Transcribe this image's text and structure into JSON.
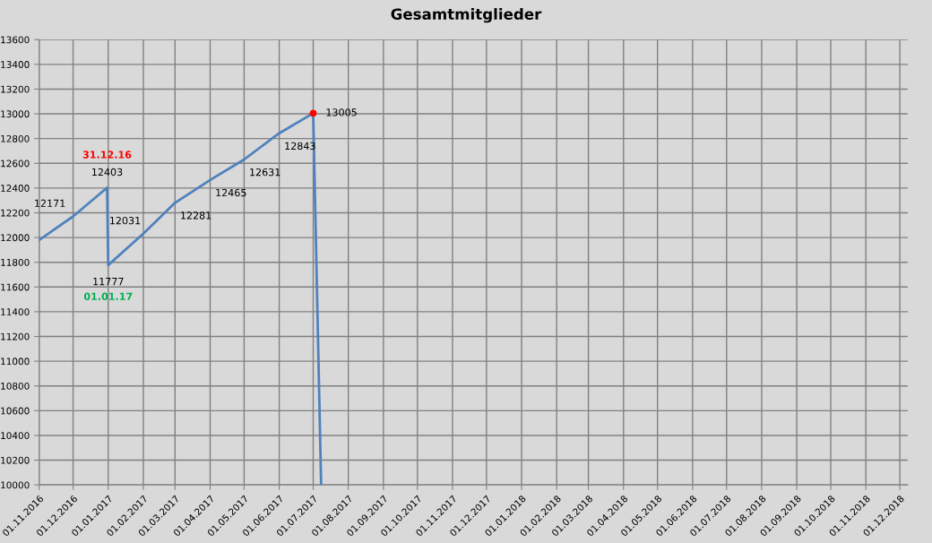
{
  "chart_data": {
    "type": "line",
    "title": "Gesamtmitglieder",
    "series": [
      {
        "color": "#4f81bd",
        "x": [
          "2016-11-01",
          "2016-12-01",
          "2016-12-31",
          "2017-01-01",
          "2017-02-01",
          "2017-03-01",
          "2017-04-01",
          "2017-05-01",
          "2017-06-01",
          "2017-07-01",
          "2017-07-08"
        ],
        "values": [
          11980,
          12171,
          12403,
          11777,
          12031,
          12281,
          12465,
          12631,
          12843,
          13005,
          10000
        ],
        "value_labels": [
          null,
          "12171",
          "12403",
          "11777",
          "12031",
          "12281",
          "12465",
          "12631",
          "12843",
          "13005",
          null
        ]
      },
      {
        "type": "scatter",
        "color": "#ff0000",
        "x": [
          "2017-07-01"
        ],
        "values": [
          13005
        ]
      }
    ],
    "annotations": [
      {
        "text": "31.12.16",
        "x": "2016-12-31",
        "y": 12403
      },
      {
        "text": "01.01.17",
        "x": "2017-01-01",
        "y": 11777
      }
    ],
    "ylim": [
      10000,
      13600
    ],
    "yticks": [
      10000,
      10200,
      10400,
      10600,
      10800,
      11000,
      11200,
      11400,
      11600,
      11800,
      12000,
      12200,
      12400,
      12600,
      12800,
      13000,
      13200,
      13400,
      13600
    ],
    "xlim": [
      "2016-11-01",
      "2018-12-08"
    ],
    "xticks": [
      {
        "value": "2016-11-01",
        "label": "01.11.2016"
      },
      {
        "value": "2016-12-01",
        "label": "01.12.2016"
      },
      {
        "value": "2017-01-01",
        "label": "01.01.2017"
      },
      {
        "value": "2017-02-01",
        "label": "01.02.2017"
      },
      {
        "value": "2017-03-01",
        "label": "01.03.2017"
      },
      {
        "value": "2017-04-01",
        "label": "01.04.2017"
      },
      {
        "value": "2017-05-01",
        "label": "01.05.2017"
      },
      {
        "value": "2017-06-01",
        "label": "01.06.2017"
      },
      {
        "value": "2017-07-01",
        "label": "01.07.2017"
      },
      {
        "value": "2017-08-01",
        "label": "01.08.2017"
      },
      {
        "value": "2017-09-01",
        "label": "01.09.2017"
      },
      {
        "value": "2017-10-01",
        "label": "01.10.2017"
      },
      {
        "value": "2017-11-01",
        "label": "01.11.2017"
      },
      {
        "value": "2017-12-01",
        "label": "01.12.2017"
      },
      {
        "value": "2018-01-01",
        "label": "01.01.2018"
      },
      {
        "value": "2018-02-01",
        "label": "01.02.2018"
      },
      {
        "value": "2018-03-01",
        "label": "01.03.2018"
      },
      {
        "value": "2018-04-01",
        "label": "01.04.2018"
      },
      {
        "value": "2018-05-01",
        "label": "01.05.2018"
      },
      {
        "value": "2018-06-01",
        "label": "01.06.2018"
      },
      {
        "value": "2018-07-01",
        "label": "01.07.2018"
      },
      {
        "value": "2018-08-01",
        "label": "01.08.2018"
      },
      {
        "value": "2018-09-01",
        "label": "01.09.2018"
      },
      {
        "value": "2018-10-01",
        "label": "01.10.2018"
      },
      {
        "value": "2018-11-01",
        "label": "01.11.2018"
      },
      {
        "value": "2018-12-01",
        "label": "01.12.2018"
      }
    ],
    "grid": true,
    "legend": false
  }
}
